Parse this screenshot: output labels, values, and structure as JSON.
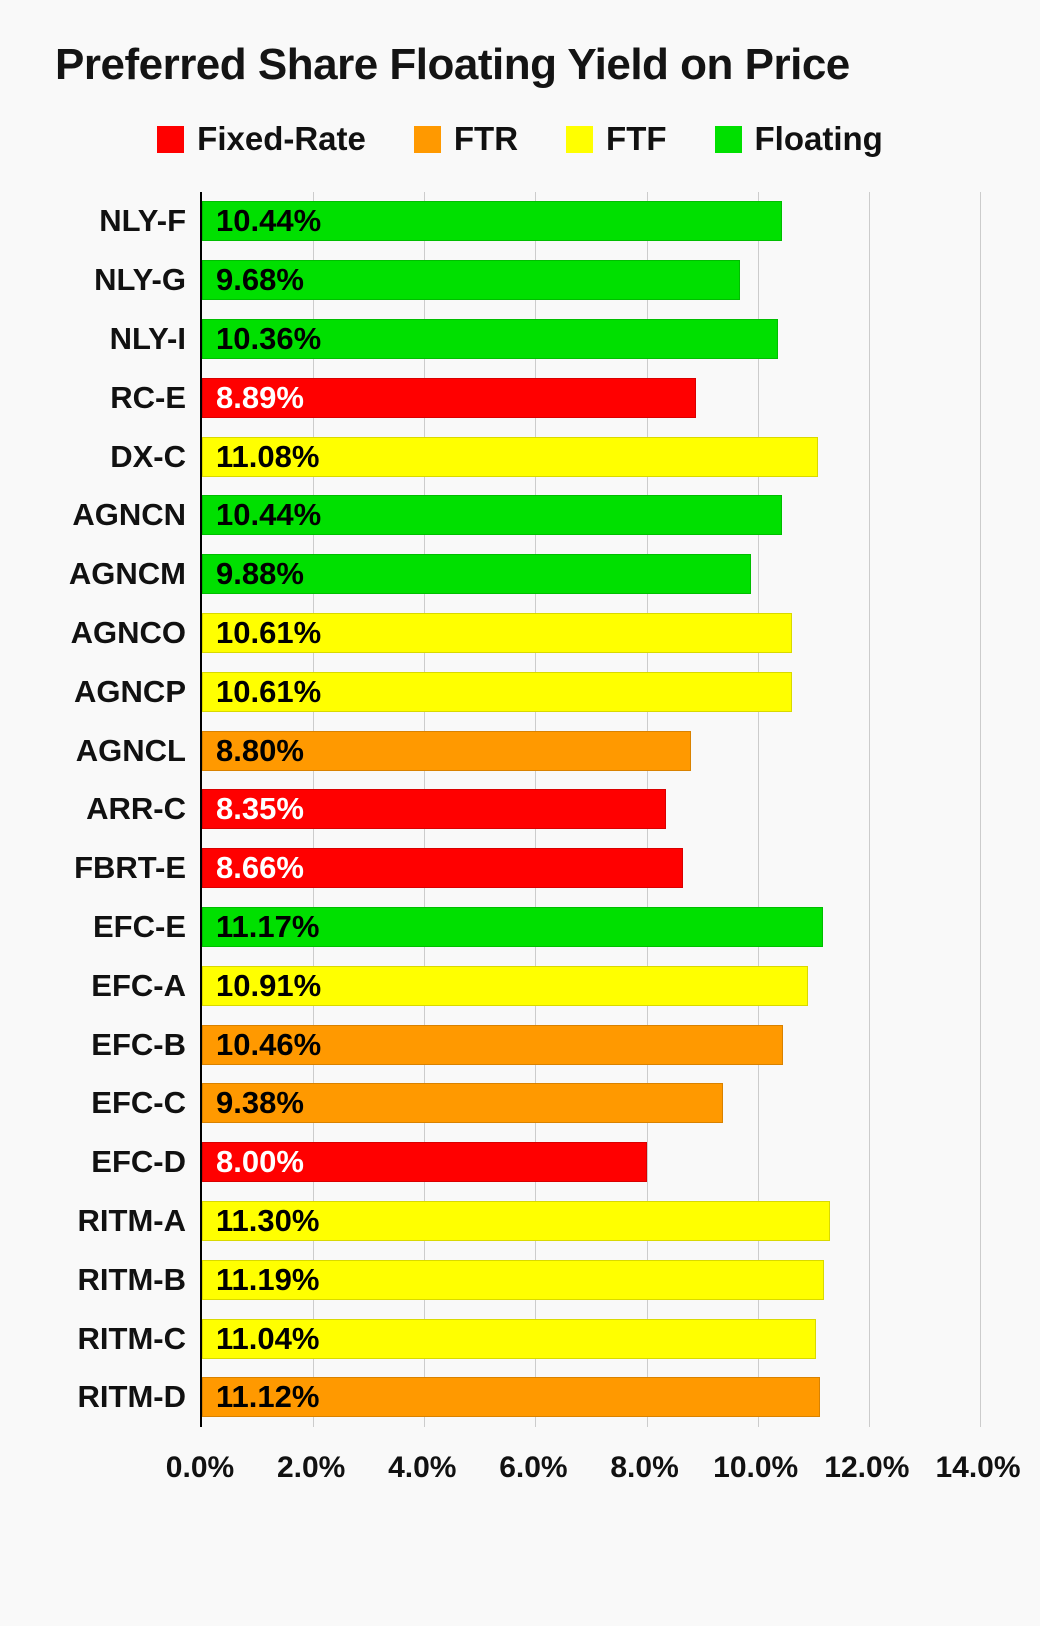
{
  "title": "Preferred Share Floating Yield on Price",
  "colors": {
    "background": "#f9f9f9",
    "grid": "#cccccc",
    "axis": "#000000"
  },
  "series_colors": {
    "Fixed-Rate": {
      "fill": "#ff0000",
      "text": "#ffffff"
    },
    "FTR": {
      "fill": "#ff9900",
      "text": "#000000"
    },
    "FTF": {
      "fill": "#ffff00",
      "text": "#000000"
    },
    "Floating": {
      "fill": "#00e000",
      "text": "#000000"
    }
  },
  "chart_data": {
    "type": "bar",
    "orientation": "horizontal",
    "title": "Preferred Share Floating Yield on Price",
    "xlim": [
      0,
      14
    ],
    "x_ticks": [
      "0.0%",
      "2.0%",
      "4.0%",
      "6.0%",
      "8.0%",
      "10.0%",
      "12.0%",
      "14.0%"
    ],
    "grid": true,
    "legend_position": "top-center",
    "legend": [
      "Fixed-Rate",
      "FTR",
      "FTF",
      "Floating"
    ],
    "bars": [
      {
        "category": "NLY-F",
        "value": 10.44,
        "label": "10.44%",
        "group": "Floating"
      },
      {
        "category": "NLY-G",
        "value": 9.68,
        "label": "9.68%",
        "group": "Floating"
      },
      {
        "category": "NLY-I",
        "value": 10.36,
        "label": "10.36%",
        "group": "Floating"
      },
      {
        "category": "RC-E",
        "value": 8.89,
        "label": "8.89%",
        "group": "Fixed-Rate"
      },
      {
        "category": "DX-C",
        "value": 11.08,
        "label": "11.08%",
        "group": "FTF"
      },
      {
        "category": "AGNCN",
        "value": 10.44,
        "label": "10.44%",
        "group": "Floating"
      },
      {
        "category": "AGNCM",
        "value": 9.88,
        "label": "9.88%",
        "group": "Floating"
      },
      {
        "category": "AGNCO",
        "value": 10.61,
        "label": "10.61%",
        "group": "FTF"
      },
      {
        "category": "AGNCP",
        "value": 10.61,
        "label": "10.61%",
        "group": "FTF"
      },
      {
        "category": "AGNCL",
        "value": 8.8,
        "label": "8.80%",
        "group": "FTR"
      },
      {
        "category": "ARR-C",
        "value": 8.35,
        "label": "8.35%",
        "group": "Fixed-Rate"
      },
      {
        "category": "FBRT-E",
        "value": 8.66,
        "label": "8.66%",
        "group": "Fixed-Rate"
      },
      {
        "category": "EFC-E",
        "value": 11.17,
        "label": "11.17%",
        "group": "Floating"
      },
      {
        "category": "EFC-A",
        "value": 10.91,
        "label": "10.91%",
        "group": "FTF"
      },
      {
        "category": "EFC-B",
        "value": 10.46,
        "label": "10.46%",
        "group": "FTR"
      },
      {
        "category": "EFC-C",
        "value": 9.38,
        "label": "9.38%",
        "group": "FTR"
      },
      {
        "category": "EFC-D",
        "value": 8.0,
        "label": "8.00%",
        "group": "Fixed-Rate"
      },
      {
        "category": "RITM-A",
        "value": 11.3,
        "label": "11.30%",
        "group": "FTF"
      },
      {
        "category": "RITM-B",
        "value": 11.19,
        "label": "11.19%",
        "group": "FTF"
      },
      {
        "category": "RITM-C",
        "value": 11.04,
        "label": "11.04%",
        "group": "FTF"
      },
      {
        "category": "RITM-D",
        "value": 11.12,
        "label": "11.12%",
        "group": "FTR"
      }
    ]
  }
}
